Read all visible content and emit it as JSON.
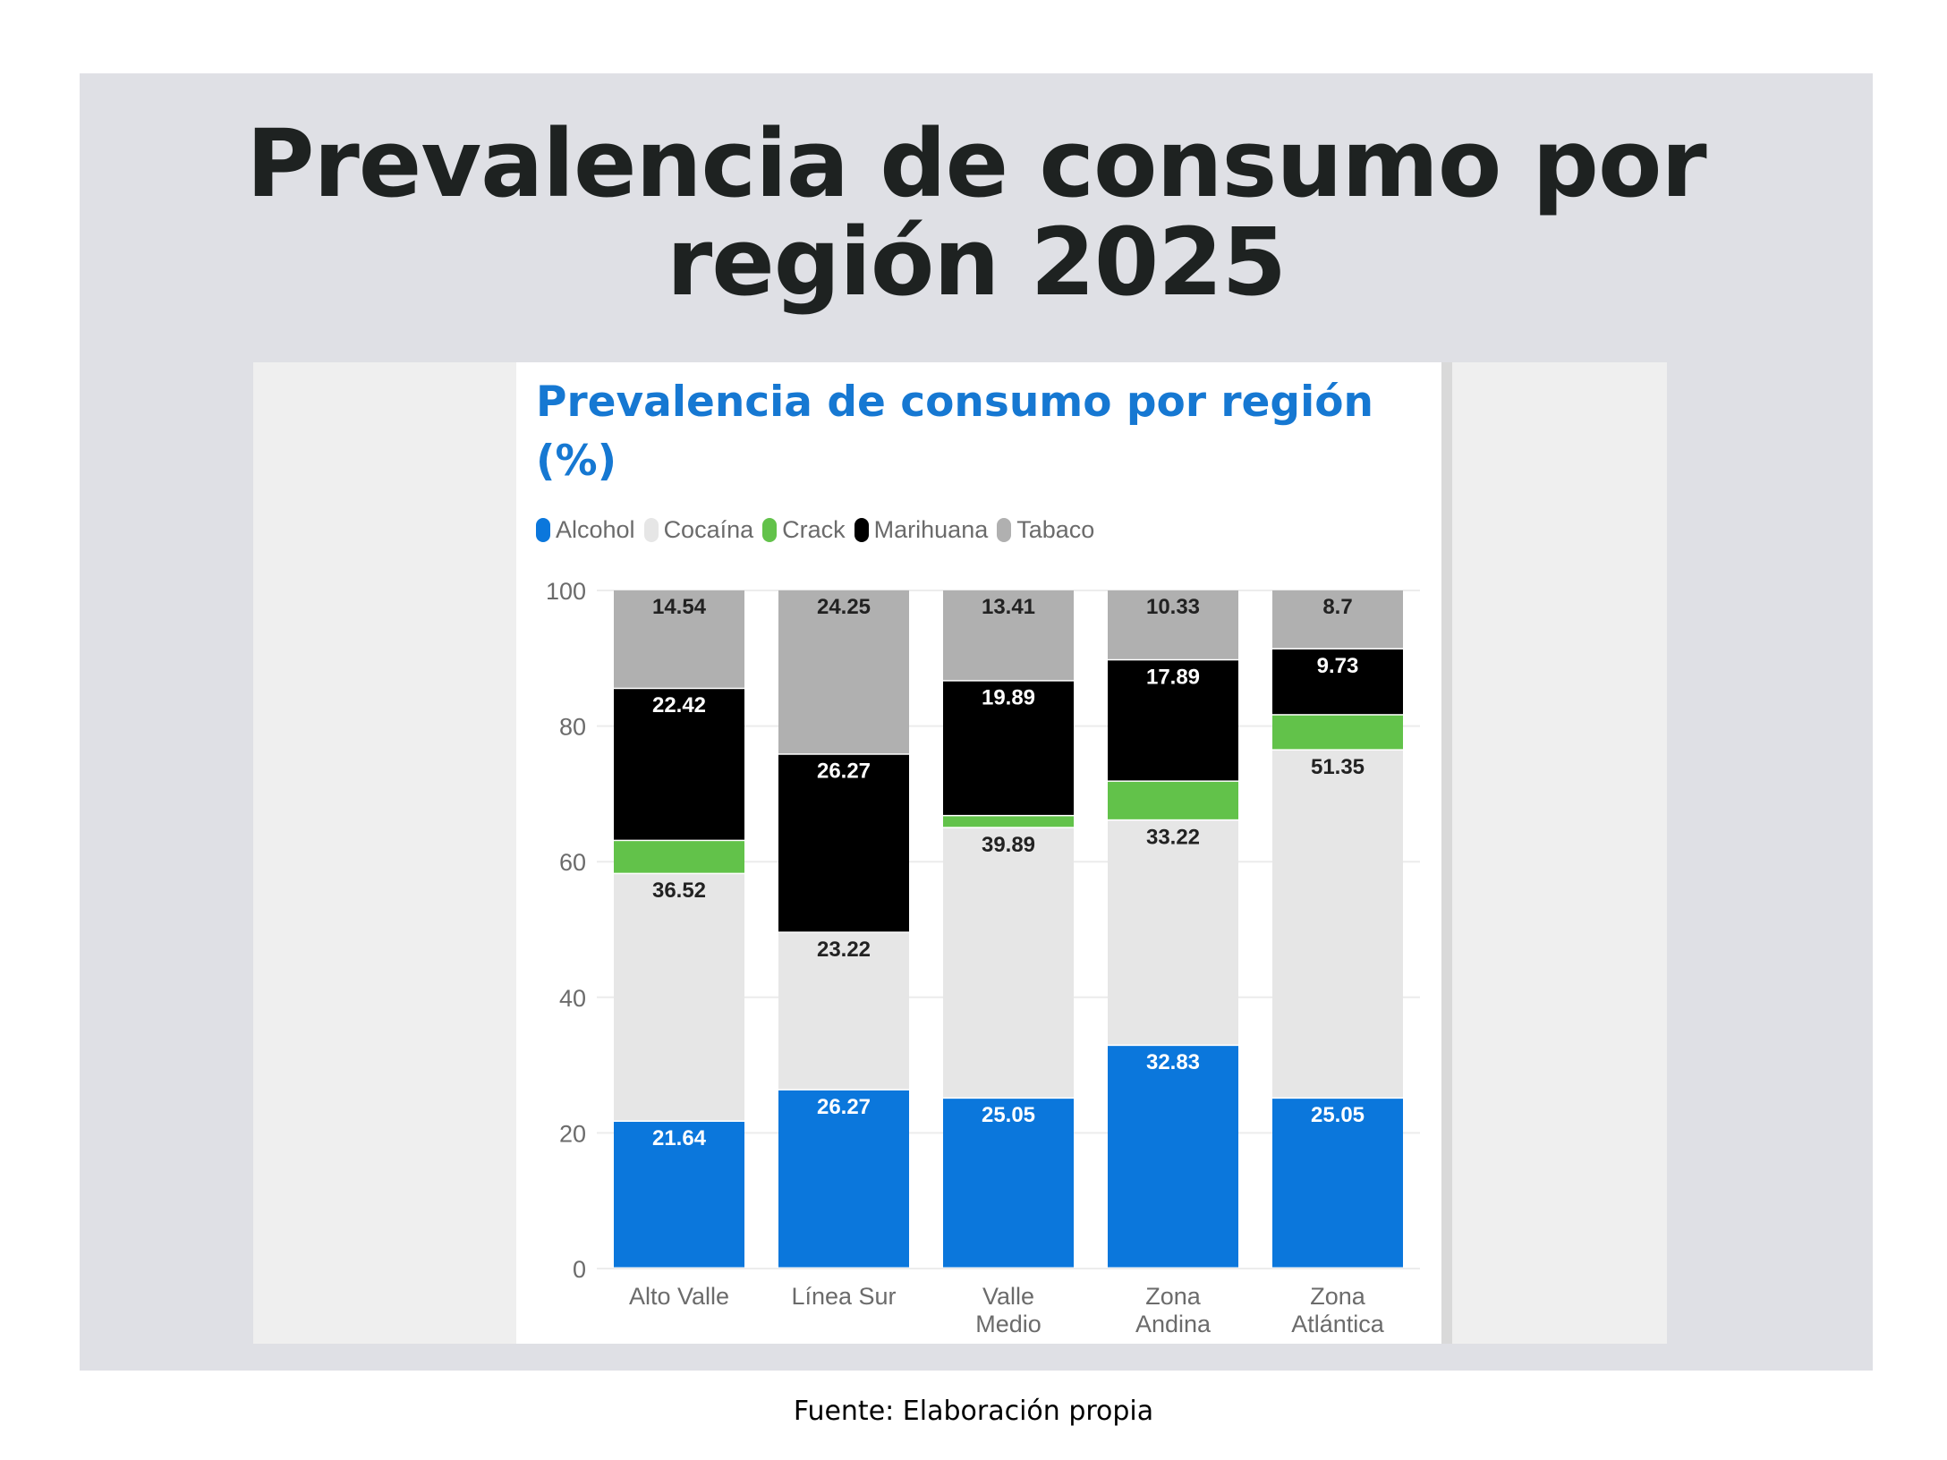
{
  "page": {
    "title": "Prevalencia de consumo por región 2025",
    "footer": "Fuente: Elaboración propia"
  },
  "chart_data": {
    "type": "bar",
    "stacked": true,
    "title": "Prevalencia de consumo por región (%)",
    "xlabel": "",
    "ylabel": "",
    "ylim": [
      0,
      100
    ],
    "yticks": [
      0,
      20,
      40,
      60,
      80,
      100
    ],
    "grid": true,
    "legend_position": "top-left",
    "categories": [
      "Alto Valle",
      "Línea Sur",
      "Valle Medio",
      "Zona Andina",
      "Zona Atlántica"
    ],
    "category_lines": [
      [
        "Alto Valle"
      ],
      [
        "Línea Sur"
      ],
      [
        "Valle",
        "Medio"
      ],
      [
        "Zona",
        "Andina"
      ],
      [
        "Zona",
        "Atlántica"
      ]
    ],
    "series": [
      {
        "name": "Alcohol",
        "color": "#0b77dc",
        "label_color": "#ffffff",
        "values": [
          21.64,
          26.27,
          25.05,
          32.83,
          25.05
        ],
        "labels": [
          "21.64",
          "26.27",
          "25.05",
          "32.83",
          "25.05"
        ]
      },
      {
        "name": "Cocaína",
        "color": "#e6e6e6",
        "label_color": "#222222",
        "values": [
          36.52,
          23.22,
          39.89,
          33.22,
          51.35
        ],
        "labels": [
          "36.52",
          "23.22",
          "39.89",
          "33.22",
          "51.35"
        ]
      },
      {
        "name": "Crack",
        "color": "#62c24a",
        "label_color": "#222222",
        "values": [
          4.88,
          0,
          1.76,
          5.73,
          5.17
        ],
        "labels": [
          "",
          "",
          "",
          "",
          ""
        ]
      },
      {
        "name": "Marihuana",
        "color": "#000000",
        "label_color": "#ffffff",
        "values": [
          22.42,
          26.27,
          19.89,
          17.89,
          9.73
        ],
        "labels": [
          "22.42",
          "26.27",
          "19.89",
          "17.89",
          "9.73"
        ]
      },
      {
        "name": "Tabaco",
        "color": "#b0b0b0",
        "label_color": "#222222",
        "values": [
          14.54,
          24.25,
          13.41,
          10.33,
          8.7
        ],
        "labels": [
          "14.54",
          "24.25",
          "13.41",
          "10.33",
          "8.7"
        ]
      }
    ]
  }
}
